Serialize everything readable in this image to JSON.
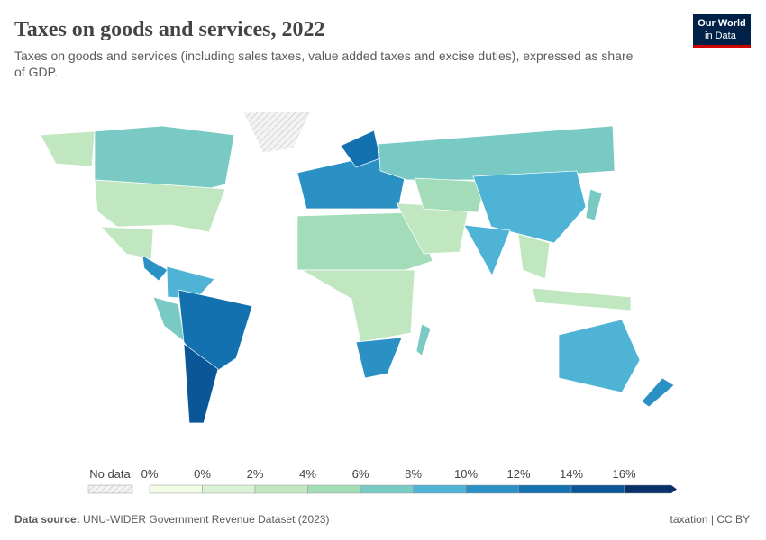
{
  "header": {
    "title": "Taxes on goods and services, 2022",
    "subtitle_lines": [
      "Taxes on goods and services (including sales taxes, value added taxes and excise duties), expressed as share",
      "of GDP."
    ],
    "logo": [
      "Our World",
      "in Data"
    ]
  },
  "legend": {
    "no_data_label": "No data",
    "ticks": [
      "0%",
      "0%",
      "2%",
      "4%",
      "6%",
      "8%",
      "10%",
      "12%",
      "14%",
      "16%"
    ],
    "colors": [
      "#f2fbe6",
      "#dbf1d6",
      "#c1e7c0",
      "#a2dcb8",
      "#79cac5",
      "#4fb3d6",
      "#2b91c5",
      "#1371b0",
      "#0a5696",
      "#08306b"
    ]
  },
  "footer": {
    "source_label": "Data source:",
    "source": "UNU-WIDER Government Revenue Dataset (2023)",
    "tags": "taxation | CC BY"
  }
}
